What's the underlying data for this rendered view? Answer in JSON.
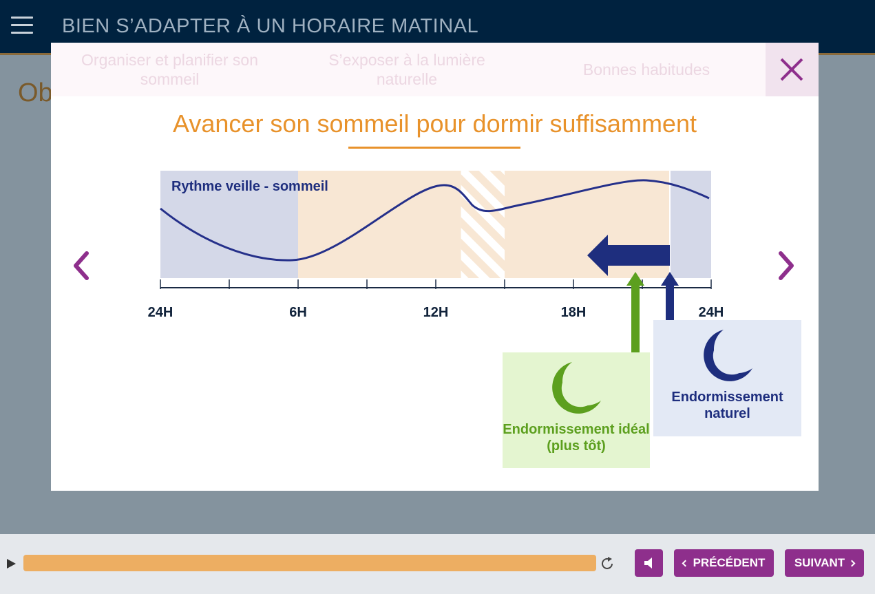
{
  "header": {
    "title": "BIEN S’ADAPTER À UN HORAIRE MATINAL",
    "menu_icon": "hamburger-icon"
  },
  "background": {
    "heading_peek": "Ob"
  },
  "modal": {
    "tabs": [
      {
        "label": "Organiser et planifier son sommeil"
      },
      {
        "label": "S’exposer à la lumière naturelle"
      },
      {
        "label": "Bonnes habitudes"
      }
    ],
    "close_icon": "close-icon",
    "title": "Avancer son sommeil pour dormir suffisamment",
    "nav_icons": [
      "chevron-left-icon",
      "chevron-right-icon"
    ]
  },
  "chart_data": {
    "type": "line",
    "series": [
      {
        "name": "Rythme veille - sommeil"
      }
    ],
    "x_ticks": [
      "24H",
      "6H",
      "12H",
      "18H",
      "24H"
    ],
    "xlim": [
      0,
      24
    ],
    "night_start": 22.2,
    "night_end": 6,
    "siesta_start": 13.1,
    "siesta_end": 15,
    "ideal_sleep_onset": 20.7,
    "natural_sleep_onset": 22.2
  },
  "callouts": {
    "ideal": {
      "label": "Endormissement idéal (plus tôt)",
      "color": "#5c9f1e",
      "icon": "moon-icon"
    },
    "natural": {
      "label": "Endormissement naturel",
      "color": "#1e2e7e",
      "icon": "moon-icon"
    }
  },
  "footer": {
    "progress": 1.0,
    "progress_color": "#edae62",
    "prev_label": "PRÉCÉDENT",
    "next_label": "SUIVANT",
    "accent": "#8e2f8c"
  }
}
